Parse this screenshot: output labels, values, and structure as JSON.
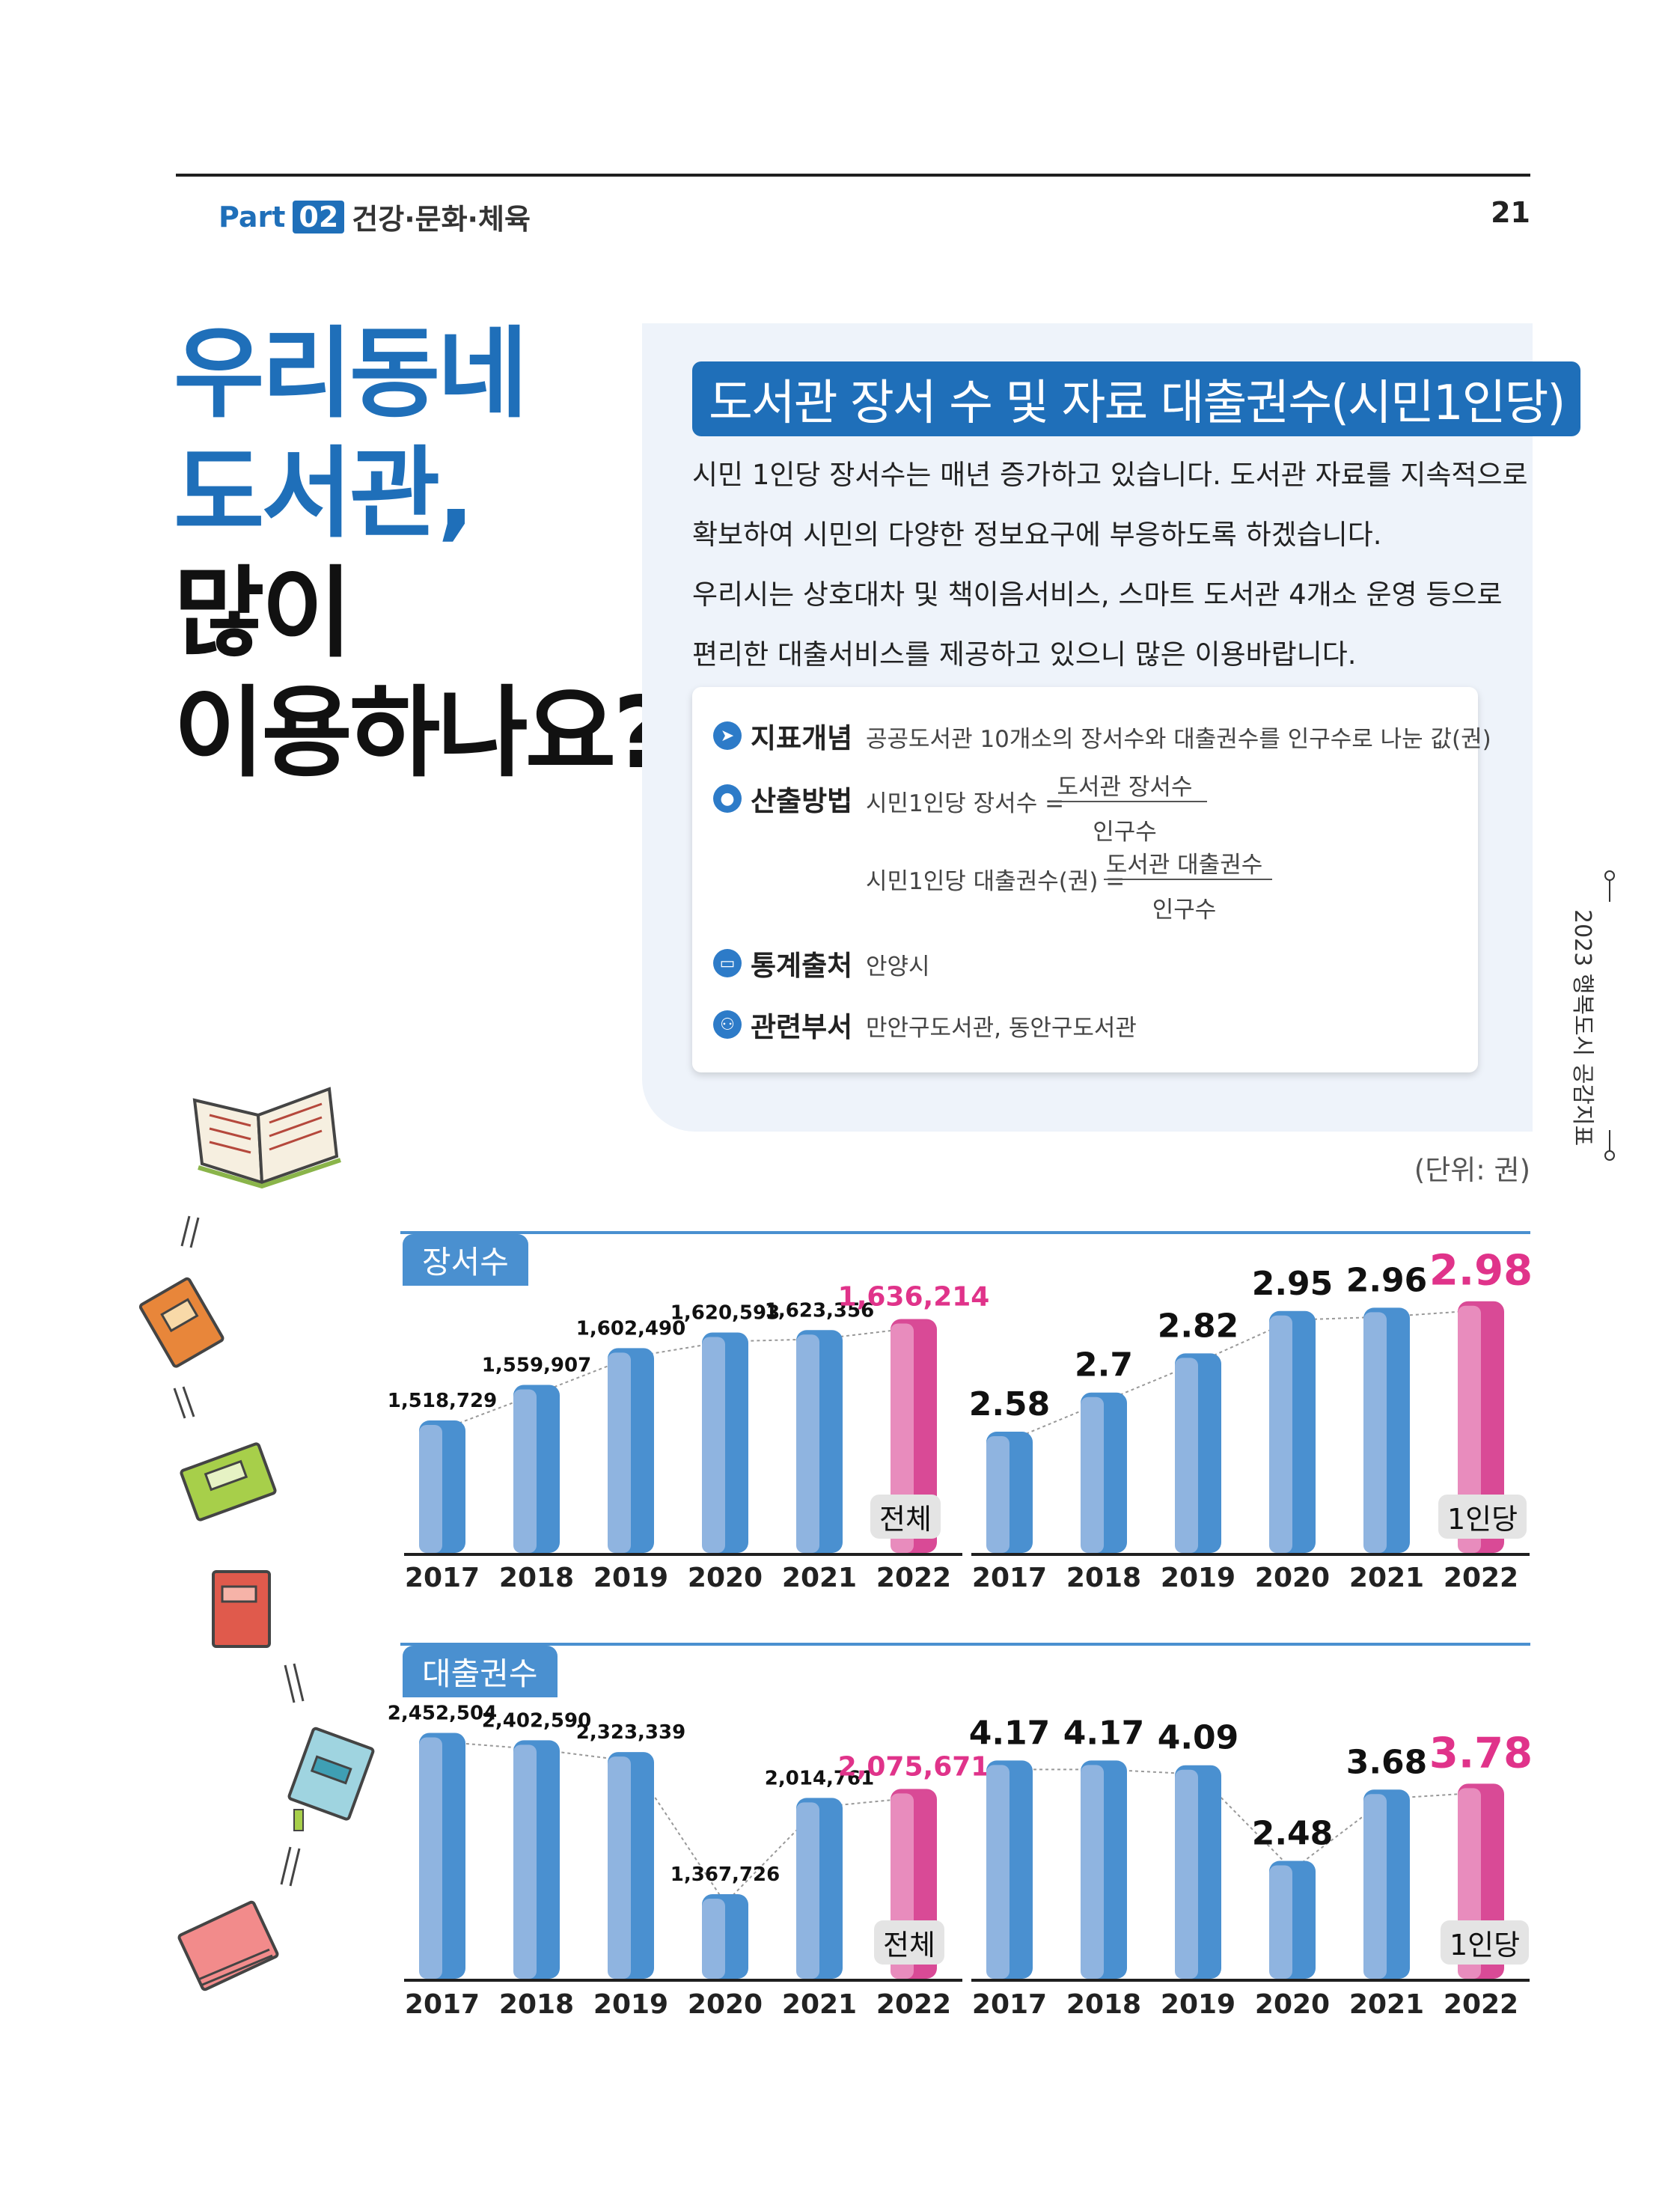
{
  "header": {
    "part_label": "Part",
    "part_number": "02",
    "section": "건강·문화·체육",
    "page_number": "21"
  },
  "title": {
    "line1": "우리동네",
    "line2": "도서관,",
    "line3": "많이",
    "line4": "이용하나요?"
  },
  "panel": {
    "heading": "도서관 장서 수 및 자료 대출권수(시민1인당)",
    "intro": [
      "시민 1인당 장서수는 매년 증가하고 있습니다. 도서관 자료를 지속적으로",
      "확보하여 시민의 다양한 정보요구에 부응하도록 하겠습니다.",
      "우리시는 상호대차 및 책이음서비스, 스마트 도서관 4개소 운영 등으로",
      "편리한 대출서비스를 제공하고 있으니 많은 이용바랍니다."
    ],
    "concept": {
      "label": "지표개념",
      "text": "공공도서관 10개소의 장서수와 대출권수를 인구수로 나눈 값(권)"
    },
    "method": {
      "label": "산출방법",
      "formula1": {
        "lhs": "시민1인당 장서수 =",
        "numerator": "도서관 장서수",
        "denominator": "인구수"
      },
      "formula2": {
        "lhs": "시민1인당 대출권수(권) =",
        "numerator": "도서관 대출권수",
        "denominator": "인구수"
      }
    },
    "source": {
      "label": "통계출처",
      "text": "안양시"
    },
    "department": {
      "label": "관련부서",
      "text": "만안구도서관, 동안구도서관"
    }
  },
  "side_tab": "2023 행복도시 공감지표",
  "unit": "(단위: 권)",
  "sections": {
    "holdings": "장서수",
    "loans": "대출권수"
  },
  "badges": {
    "total": "전체",
    "per_capita": "1인당"
  },
  "colors": {
    "blue": "#1f6fb9",
    "bar_blue": "#4a90d0",
    "bar_light": "#8fb4e0",
    "pink": "#d94a96",
    "pink_light": "#e88cbd",
    "highlight": "#e0338a"
  },
  "chart_data": [
    {
      "type": "bar",
      "title": "장서수",
      "categories": [
        "2017",
        "2018",
        "2019",
        "2020",
        "2021",
        "2022"
      ],
      "series": [
        {
          "name": "전체",
          "values": [
            1518729,
            1559907,
            1602490,
            1620593,
            1623356,
            1636214
          ]
        }
      ],
      "value_labels": [
        "1,518,729",
        "1,559,907",
        "1,602,490",
        "1,620,593",
        "1,623,356",
        "1,636,214"
      ],
      "highlight_last": true,
      "trend_line": true
    },
    {
      "type": "bar",
      "title": "장서수",
      "categories": [
        "2017",
        "2018",
        "2019",
        "2020",
        "2021",
        "2022"
      ],
      "series": [
        {
          "name": "1인당",
          "values": [
            2.58,
            2.7,
            2.82,
            2.95,
            2.96,
            2.98
          ]
        }
      ],
      "value_labels": [
        "2.58",
        "2.7",
        "2.82",
        "2.95",
        "2.96",
        "2.98"
      ],
      "highlight_last": true,
      "trend_line": true
    },
    {
      "type": "bar",
      "title": "대출권수",
      "categories": [
        "2017",
        "2018",
        "2019",
        "2020",
        "2021",
        "2022"
      ],
      "series": [
        {
          "name": "전체",
          "values": [
            2452504,
            2402590,
            2323339,
            1367726,
            2014761,
            2075671
          ]
        }
      ],
      "value_labels": [
        "2,452,504",
        "2,402,590",
        "2,323,339",
        "1,367,726",
        "2,014,761",
        "2,075,671"
      ],
      "highlight_last": true,
      "trend_line": true
    },
    {
      "type": "bar",
      "title": "대출권수",
      "categories": [
        "2017",
        "2018",
        "2019",
        "2020",
        "2021",
        "2022"
      ],
      "series": [
        {
          "name": "1인당",
          "values": [
            4.17,
            4.17,
            4.09,
            2.48,
            3.68,
            3.78
          ]
        }
      ],
      "value_labels": [
        "4.17",
        "4.17",
        "4.09",
        "2.48",
        "3.68",
        "3.78"
      ],
      "highlight_last": true,
      "trend_line": true
    }
  ]
}
